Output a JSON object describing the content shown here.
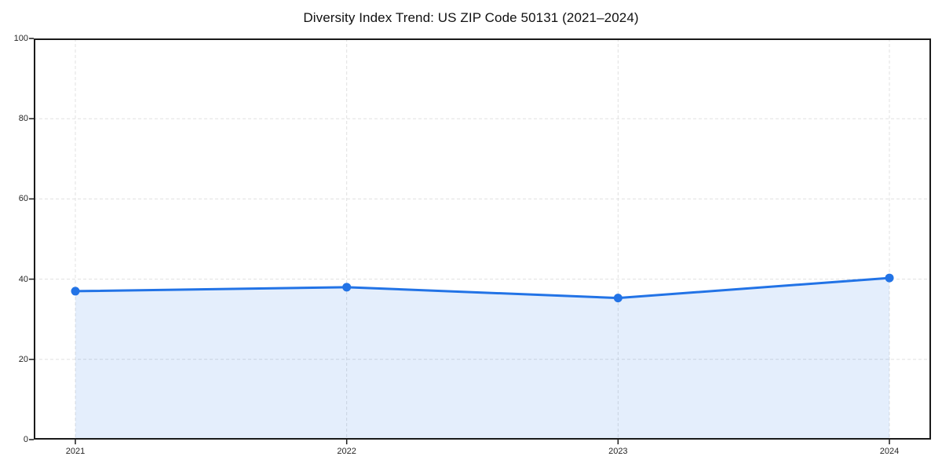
{
  "chart_data": {
    "type": "area",
    "title": "Diversity Index Trend: US ZIP Code 50131 (2021–2024)",
    "x": [
      "2021",
      "2022",
      "2023",
      "2024"
    ],
    "values": [
      37.0,
      38.0,
      35.3,
      40.3
    ],
    "xlabel": "",
    "ylabel": "",
    "ylim": [
      0,
      100
    ],
    "yticks": [
      0,
      20,
      40,
      60,
      80,
      100
    ],
    "grid": "dashed horizontal and vertical gridlines",
    "legend": "none",
    "marker": "circle",
    "colors": {
      "line": "#2273e6",
      "marker": "#2273e6",
      "fill": "rgba(34, 115, 230, 0.12)",
      "gridline": "#e0e0e0",
      "frame": "#1a1a1a",
      "tick_label": "#262626",
      "title": "#111111",
      "background": "#ffffff"
    }
  }
}
